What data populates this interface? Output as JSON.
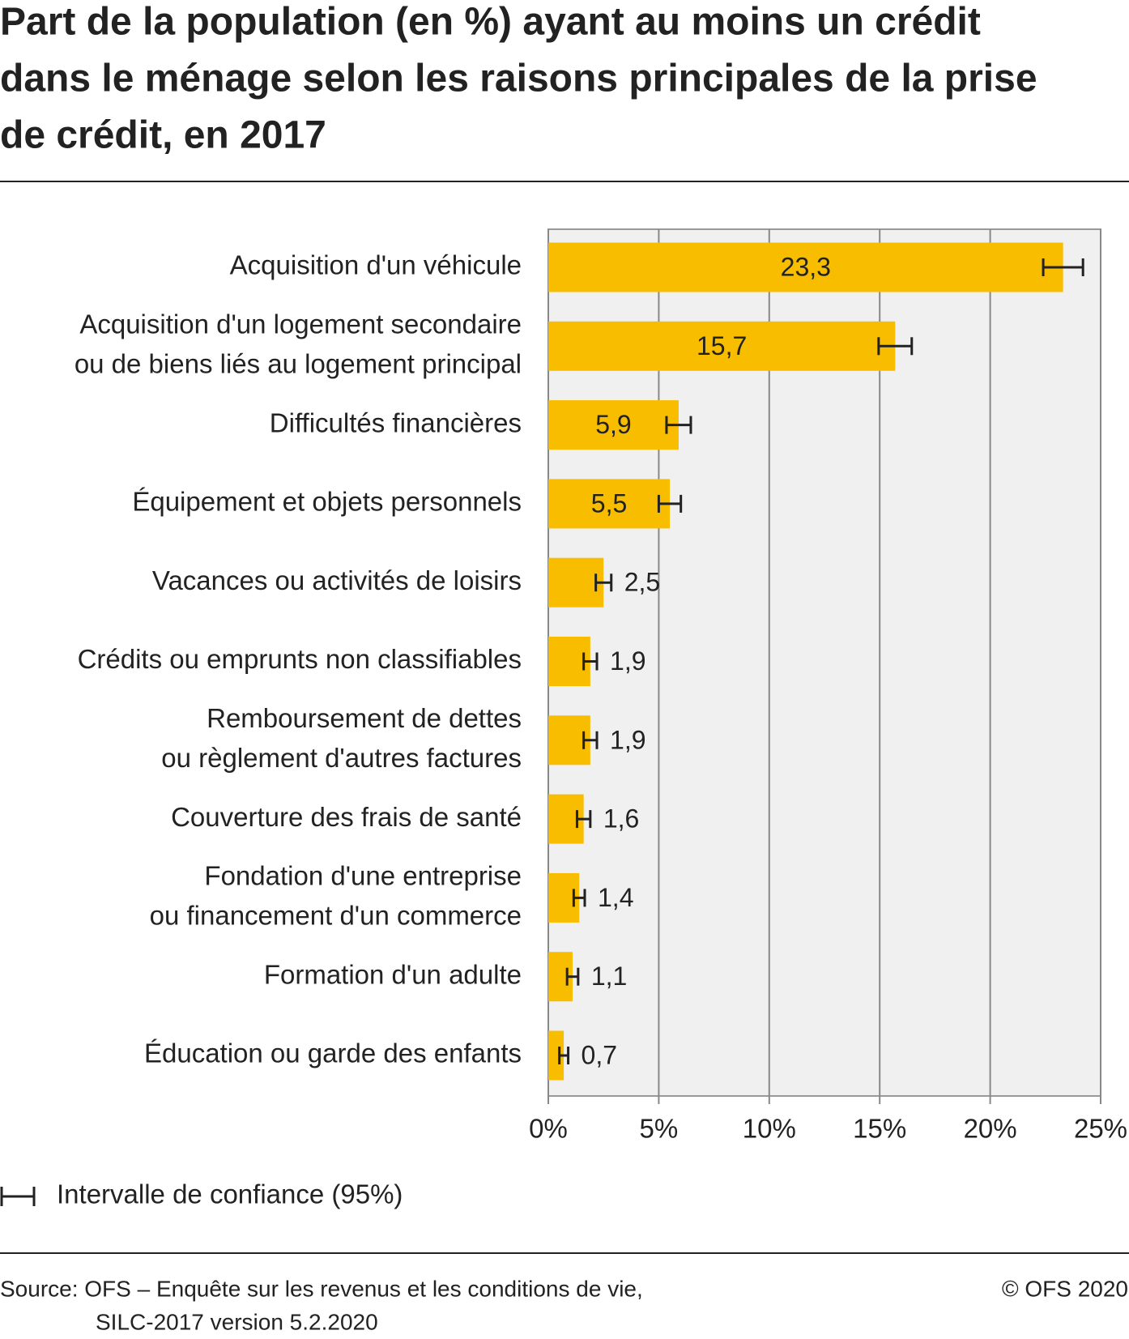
{
  "chart_data": {
    "type": "bar",
    "orientation": "horizontal",
    "title": [
      "Part de la population (en %) ayant au moins un crédit",
      "dans le ménage selon les raisons principales de la prise",
      "de crédit, en 2017"
    ],
    "categories": [
      [
        "Acquisition d'un véhicule"
      ],
      [
        "Acquisition d'un logement secondaire",
        "ou de biens liés au logement principal"
      ],
      [
        "Difficultés financières"
      ],
      [
        "Équipement et objets personnels"
      ],
      [
        "Vacances ou activités de loisirs"
      ],
      [
        "Crédits ou emprunts non classifiables"
      ],
      [
        "Remboursement de dettes",
        "ou règlement d'autres factures"
      ],
      [
        "Couverture des frais de santé"
      ],
      [
        "Fondation d'une entreprise",
        "ou financement d'un commerce"
      ],
      [
        "Formation d'un adulte"
      ],
      [
        "Éducation ou garde des enfants"
      ]
    ],
    "values": [
      23.3,
      15.7,
      5.9,
      5.5,
      2.5,
      1.9,
      1.9,
      1.6,
      1.4,
      1.1,
      0.7
    ],
    "value_labels": [
      "23,3",
      "15,7",
      "5,9",
      "5,5",
      "2,5",
      "1,9",
      "1,9",
      "1,6",
      "1,4",
      "1,1",
      "0,7"
    ],
    "errors": [
      0.9,
      0.75,
      0.55,
      0.5,
      0.35,
      0.3,
      0.3,
      0.3,
      0.25,
      0.25,
      0.2
    ],
    "color": "#f9bd00",
    "xlim": [
      0,
      25
    ],
    "xticks": [
      {
        "value": 0,
        "label": "0%"
      },
      {
        "value": 5,
        "label": "5%"
      },
      {
        "value": 10,
        "label": "10%"
      },
      {
        "value": 15,
        "label": "15%"
      },
      {
        "value": 20,
        "label": "20%"
      },
      {
        "value": 25,
        "label": "25%"
      }
    ],
    "grid": true,
    "legend": "Intervalle de confiance (95%)",
    "source": [
      "Source: OFS – Enquête sur les revenus et les conditions de vie,",
      "SILC-2017 version 5.2.2020"
    ],
    "copyright": "© OFS 2020"
  }
}
